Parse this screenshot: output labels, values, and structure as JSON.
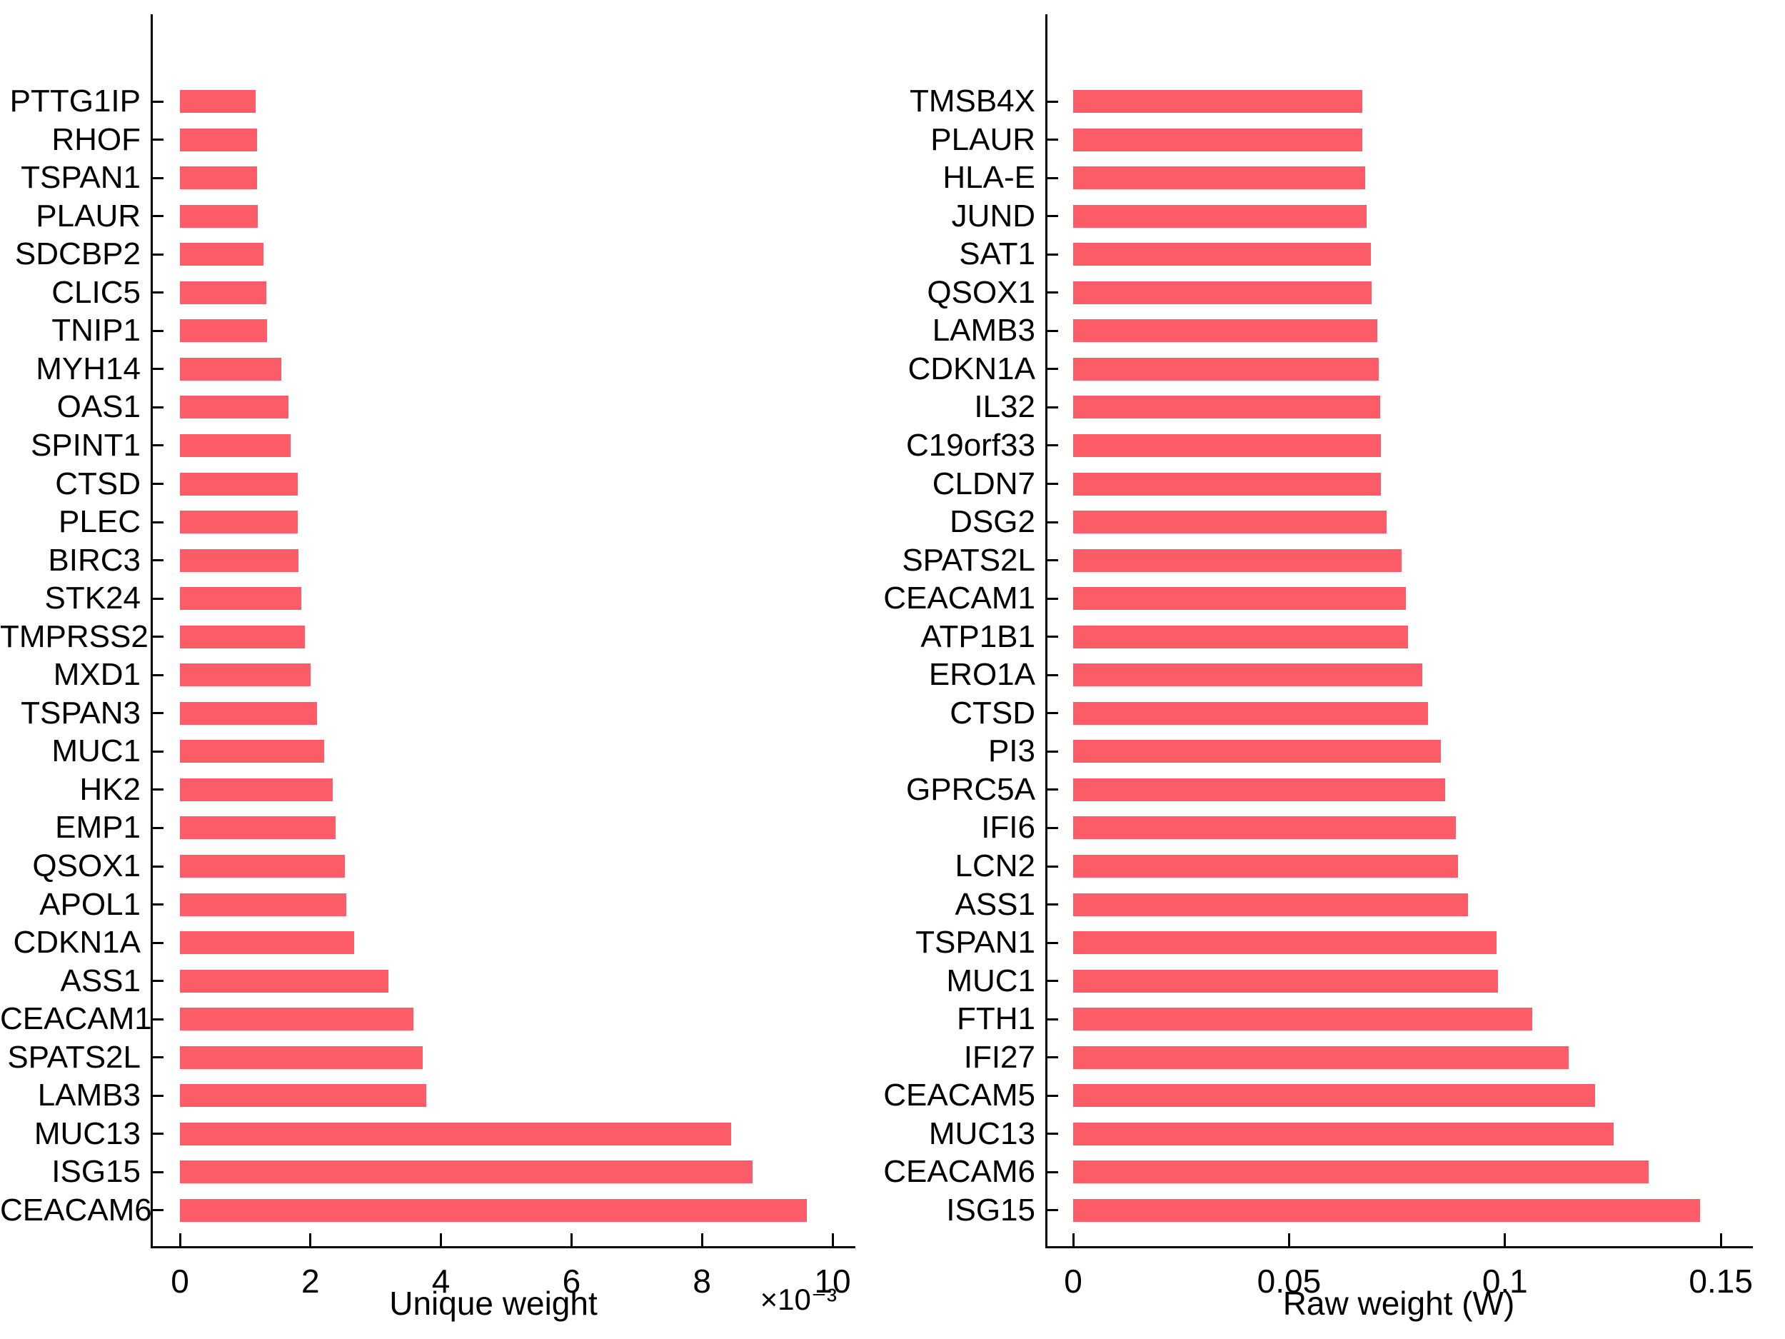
{
  "page": {
    "background": "#ffffff"
  },
  "chart_data": [
    {
      "id": "unique-weight-chart",
      "type": "bar",
      "orientation": "horizontal",
      "title": "",
      "xlabel": "Unique weight",
      "scale_label": "×10⁻³",
      "bar_color": "#FC5C68",
      "grid": false,
      "legend": null,
      "xlim": [
        0,
        10
      ],
      "x_ticks": [
        0,
        2,
        4,
        6,
        8,
        10
      ],
      "x_tick_labels": [
        "0",
        "2",
        "4",
        "6",
        "8",
        "10"
      ],
      "value_units": "1e-3",
      "categories": [
        "PTTG1IP",
        "RHOF",
        "TSPAN1",
        "PLAUR",
        "SDCBP2",
        "CLIC5",
        "TNIP1",
        "MYH14",
        "OAS1",
        "SPINT1",
        "CTSD",
        "PLEC",
        "BIRC3",
        "STK24",
        "TMPRSS2",
        "MXD1",
        "TSPAN3",
        "MUC1",
        "HK2",
        "EMP1",
        "QSOX1",
        "APOL1",
        "CDKN1A",
        "ASS1",
        "CEACAM1",
        "SPATS2L",
        "LAMB3",
        "MUC13",
        "ISG15",
        "CEACAM6"
      ],
      "values": [
        1.16,
        1.18,
        1.18,
        1.19,
        1.28,
        1.32,
        1.34,
        1.55,
        1.66,
        1.7,
        1.8,
        1.81,
        1.82,
        1.86,
        1.92,
        2.0,
        2.1,
        2.21,
        2.34,
        2.39,
        2.53,
        2.55,
        2.67,
        3.19,
        3.58,
        3.72,
        3.78,
        8.45,
        8.78,
        9.61
      ]
    },
    {
      "id": "raw-weight-chart",
      "type": "bar",
      "orientation": "horizontal",
      "title": "",
      "xlabel": "Raw weight (W)",
      "scale_label": "",
      "bar_color": "#FC5C68",
      "grid": false,
      "legend": null,
      "xlim": [
        0,
        0.15
      ],
      "x_ticks": [
        0,
        0.05,
        0.1,
        0.15
      ],
      "x_tick_labels": [
        "0",
        "0.05",
        "0.1",
        "0.15"
      ],
      "value_units": "1",
      "categories": [
        "TMSB4X",
        "PLAUR",
        "HLA-E",
        "JUND",
        "SAT1",
        "QSOX1",
        "LAMB3",
        "CDKN1A",
        "IL32",
        "C19orf33",
        "CLDN7",
        "DSG2",
        "SPATS2L",
        "CEACAM1",
        "ATP1B1",
        "ERO1A",
        "CTSD",
        "PI3",
        "GPRC5A",
        "IFI6",
        "LCN2",
        "ASS1",
        "TSPAN1",
        "MUC1",
        "FTH1",
        "IFI27",
        "CEACAM5",
        "MUC13",
        "CEACAM6",
        "ISG15"
      ],
      "values": [
        0.067,
        0.067,
        0.0676,
        0.068,
        0.069,
        0.0691,
        0.0705,
        0.0708,
        0.0711,
        0.0713,
        0.0713,
        0.0726,
        0.076,
        0.0771,
        0.0776,
        0.0808,
        0.0822,
        0.0851,
        0.0862,
        0.0887,
        0.0891,
        0.0914,
        0.098,
        0.0983,
        0.1063,
        0.1147,
        0.1208,
        0.1252,
        0.1333,
        0.1451
      ]
    }
  ]
}
